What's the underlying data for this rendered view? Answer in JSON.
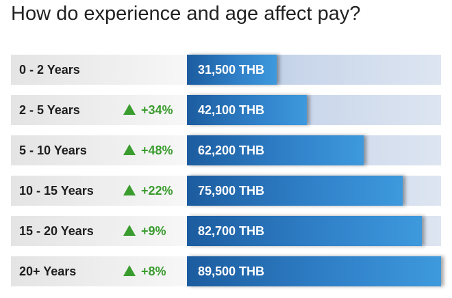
{
  "title": "How do experience and age affect pay?",
  "accent_colors": {
    "bar_fill": "#2f7fc7",
    "bar_track": "#c9d6ea",
    "label_panel": "#eeeeee",
    "increase": "#3a9c2e"
  },
  "increase_icon": "triangle-up-icon",
  "chart_data": {
    "type": "bar",
    "orientation": "horizontal",
    "title": "How do experience and age affect pay?",
    "unit": "THB",
    "xlim": [
      0,
      89500
    ],
    "categories": [
      "0 - 2 Years",
      "2 - 5 Years",
      "5 - 10 Years",
      "10 - 15 Years",
      "15 - 20 Years",
      "20+ Years"
    ],
    "values": [
      31500,
      42100,
      62200,
      75900,
      82700,
      89500
    ],
    "value_labels": [
      "31,500 THB",
      "42,100 THB",
      "62,200 THB",
      "75,900 THB",
      "82,700 THB",
      "89,500 THB"
    ],
    "changes": [
      "",
      "+34%",
      "+48%",
      "+22%",
      "+9%",
      "+8%"
    ]
  }
}
